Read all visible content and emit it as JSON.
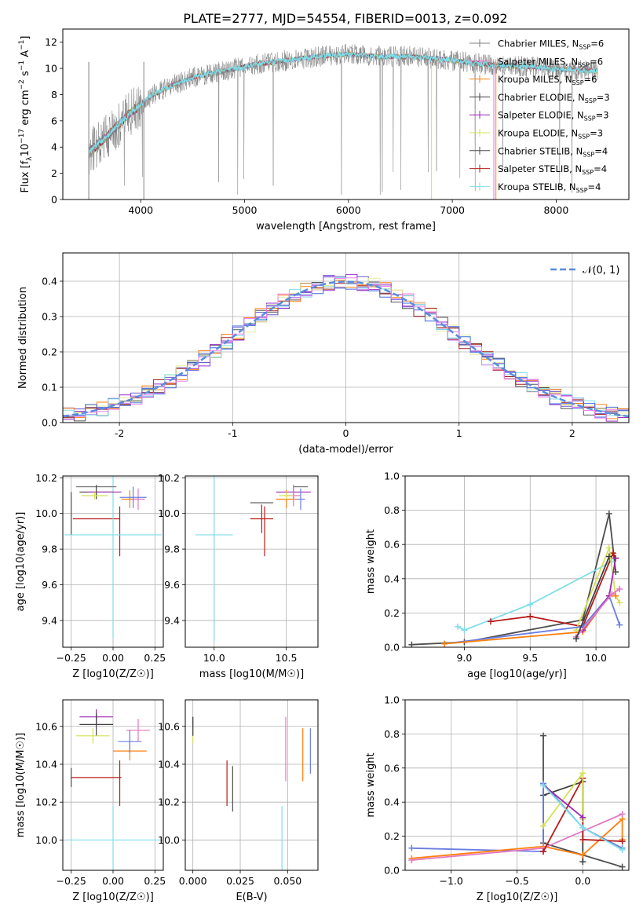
{
  "figure_title": "PLATE=2777, MJD=54554, FIBERID=0013, z=0.092",
  "colors": {
    "series": [
      "#808080",
      "#e377c2",
      "#ff7f0e",
      "#404040",
      "#9c27b0",
      "#d4e157",
      "#4d4d4d",
      "#b71c1c",
      "#80deea"
    ],
    "line_medians": [
      "#555555",
      "#6a5acd",
      "#ff7f0e",
      "#a02020",
      "#9932cc",
      "#e6ee9c",
      "#80deea",
      "#4169e1",
      "#ee82ee"
    ],
    "gauss": "#5b8ddb"
  },
  "legend_entries": [
    "Chabrier MILES, N",
    "Salpeter MILES, N",
    "Kroupa MILES, N",
    "Chabrier ELODIE, N",
    "Salpeter ELODIE, N",
    "Kroupa ELODIE, N",
    "Chabrier STELIB, N",
    "Salpeter STELIB, N",
    "Kroupa STELIB, N"
  ],
  "legend_subscript": "SSP",
  "legend_counts": [
    "=6",
    "=6",
    "=6",
    "=3",
    "=3",
    "=3",
    "=4",
    "=4",
    "=4"
  ],
  "hist_legend": "𝒩(0, 1)",
  "chart_data": [
    {
      "type": "line",
      "id": "spectrum",
      "title": "PLATE=2777, MJD=54554, FIBERID=0013, z=0.092",
      "xlabel": "wavelength [Angstrom, rest frame]",
      "ylabel": "Flux [f_λ 10^-17 erg cm^-2 s^-1 A^-1]",
      "xlim": [
        3250,
        8700
      ],
      "ylim": [
        0,
        13
      ],
      "xticks": [
        4000,
        5000,
        6000,
        7000,
        8000
      ],
      "yticks": [
        0,
        2,
        4,
        6,
        8,
        10,
        12
      ],
      "grid": false,
      "legend_position": "top-right",
      "continuum_x": [
        3500,
        3700,
        3900,
        4100,
        4300,
        4500,
        4800,
        5100,
        5400,
        5700,
        6000,
        6300,
        6600,
        6900,
        7200,
        7500,
        7800,
        8100,
        8400
      ],
      "continuum_y": [
        3.6,
        5.0,
        6.6,
        7.9,
        8.7,
        9.3,
        9.8,
        10.3,
        10.6,
        10.9,
        11.1,
        10.9,
        10.9,
        10.7,
        10.4,
        10.2,
        10.1,
        9.9,
        9.8
      ],
      "series_names": [
        "Chabrier MILES",
        "Salpeter MILES",
        "Kroupa MILES",
        "Chabrier ELODIE",
        "Salpeter ELODIE",
        "Kroupa ELODIE",
        "Chabrier STELIB",
        "Salpeter STELIB",
        "Kroupa STELIB"
      ]
    },
    {
      "type": "histogram",
      "id": "residuals",
      "xlabel": "(data-model)/error",
      "ylabel": "Normed distribution",
      "xlim": [
        -2.5,
        2.5
      ],
      "ylim": [
        0,
        0.48
      ],
      "xticks": [
        -2,
        -1,
        0,
        1,
        2
      ],
      "yticks": [
        0.0,
        0.1,
        0.2,
        0.3,
        0.4
      ],
      "grid": true,
      "bin_width": 0.1,
      "reference_curve": "normal(0,1)",
      "legend_position": "top-right"
    },
    {
      "type": "errorbar",
      "id": "age_vs_Z",
      "xlabel": "Z [log10(Z/Z☉)]",
      "ylabel": "age [log10(age/yr)]",
      "xlim": [
        -0.3,
        0.3
      ],
      "ylim": [
        9.25,
        10.21
      ],
      "xticks": [
        -0.25,
        0.0,
        0.25
      ],
      "xtick_labels": [
        "−0.25",
        "0.00",
        "0.25"
      ],
      "yticks": [
        9.4,
        9.6,
        9.8,
        10.0,
        10.2
      ],
      "grid": true,
      "points": [
        {
          "x": -0.25,
          "xerr": 0.0,
          "y": 10.0,
          "yerr": 0.12,
          "color": "#4d4d4d"
        },
        {
          "x": -0.1,
          "xerr": 0.14,
          "y": 9.97,
          "yerr": 0.0,
          "color": "#b71c1c"
        },
        {
          "x": 0.04,
          "xerr": 0.0,
          "y": 9.9,
          "yerr": 0.14,
          "color": "#b71c1c"
        },
        {
          "x": 0.0,
          "xerr": 0.29,
          "y": 9.88,
          "yerr": 0.58,
          "color": "#80deea"
        },
        {
          "x": -0.1,
          "xerr": 0.12,
          "y": 10.15,
          "yerr": 0.0,
          "color": "#808080"
        },
        {
          "x": -0.1,
          "xerr": 0.1,
          "y": 10.12,
          "yerr": 0.04,
          "color": "#404040"
        },
        {
          "x": -0.05,
          "xerr": 0.1,
          "y": 10.12,
          "yerr": 0.0,
          "color": "#9c27b0"
        },
        {
          "x": -0.11,
          "xerr": 0.08,
          "y": 10.1,
          "yerr": 0.02,
          "color": "#d4e157"
        },
        {
          "x": 0.1,
          "xerr": 0.05,
          "y": 10.08,
          "yerr": 0.05,
          "color": "#ff7f0e"
        },
        {
          "x": 0.15,
          "xerr": 0.04,
          "y": 10.08,
          "yerr": 0.06,
          "color": "#e377c2"
        },
        {
          "x": 0.12,
          "xerr": 0.08,
          "y": 10.09,
          "yerr": 0.06,
          "color": "#6a7de0"
        }
      ]
    },
    {
      "type": "errorbar",
      "id": "age_vs_mass",
      "xlabel": "mass [log10(M/M☉)]",
      "ylabel": "",
      "xlim": [
        9.8,
        10.72
      ],
      "ylim": [
        9.25,
        10.21
      ],
      "xticks": [
        10.0,
        10.5
      ],
      "yticks": [
        9.4,
        9.6,
        9.8,
        10.0,
        10.2
      ],
      "grid": true,
      "points": [
        {
          "x": 10.0,
          "xerr": 0.13,
          "y": 9.88,
          "yerr": 0.6,
          "color": "#80deea"
        },
        {
          "x": 10.33,
          "xerr": 0.08,
          "y": 9.97,
          "yerr": 0.08,
          "color": "#b71c1c"
        },
        {
          "x": 10.33,
          "xerr": 0.08,
          "y": 10.06,
          "yerr": 0.0,
          "color": "#4d4d4d"
        },
        {
          "x": 10.35,
          "xerr": 0.0,
          "y": 9.9,
          "yerr": 0.14,
          "color": "#b71c1c"
        },
        {
          "x": 10.55,
          "xerr": 0.12,
          "y": 10.12,
          "yerr": 0.04,
          "color": "#9c27b0"
        },
        {
          "x": 10.5,
          "xerr": 0.07,
          "y": 10.08,
          "yerr": 0.05,
          "color": "#ff7f0e"
        },
        {
          "x": 10.55,
          "xerr": 0.05,
          "y": 10.1,
          "yerr": 0.06,
          "color": "#e377c2"
        },
        {
          "x": 10.6,
          "xerr": 0.03,
          "y": 10.08,
          "yerr": 0.06,
          "color": "#6a7de0"
        },
        {
          "x": 10.5,
          "xerr": 0.05,
          "y": 10.1,
          "yerr": 0.02,
          "color": "#d4e157"
        },
        {
          "x": 10.6,
          "xerr": 0.05,
          "y": 10.15,
          "yerr": 0.0,
          "color": "#808080"
        }
      ]
    },
    {
      "type": "line",
      "id": "mass_weight_vs_age",
      "xlabel": "age [log10(age/yr)]",
      "ylabel": "mass weight",
      "xlim": [
        8.55,
        10.25
      ],
      "ylim": [
        0,
        1.0
      ],
      "xticks": [
        9.0,
        9.5,
        10.0
      ],
      "yticks": [
        0.0,
        0.2,
        0.4,
        0.6,
        0.8,
        1.0
      ],
      "grid": true,
      "series": [
        {
          "color": "#4d4d4d",
          "x": [
            8.6,
            9.0,
            9.9,
            10.1,
            10.15
          ],
          "y": [
            0.015,
            0.03,
            0.16,
            0.78,
            0.44
          ]
        },
        {
          "color": "#80deea",
          "x": [
            8.95,
            9.0,
            9.5,
            10.12
          ],
          "y": [
            0.12,
            0.1,
            0.25,
            0.5
          ]
        },
        {
          "color": "#b71c1c",
          "x": [
            9.2,
            9.5,
            9.9,
            10.13,
            10.15
          ],
          "y": [
            0.15,
            0.18,
            0.12,
            0.55,
            0.52
          ]
        },
        {
          "color": "#d4e157",
          "x": [
            9.85,
            10.1,
            10.15,
            10.18
          ],
          "y": [
            0.1,
            0.58,
            0.3,
            0.26
          ]
        },
        {
          "color": "#6a7de0",
          "x": [
            8.85,
            9.9,
            10.1,
            10.18
          ],
          "y": [
            0.02,
            0.12,
            0.3,
            0.13
          ]
        },
        {
          "color": "#ff7f0e",
          "x": [
            8.85,
            9.9,
            10.1,
            10.15
          ],
          "y": [
            0.02,
            0.09,
            0.3,
            0.3
          ]
        },
        {
          "color": "#9c27b0",
          "x": [
            9.9,
            10.1,
            10.15
          ],
          "y": [
            0.1,
            0.3,
            0.52
          ]
        },
        {
          "color": "#e377c2",
          "x": [
            9.85,
            10.12,
            10.18
          ],
          "y": [
            0.06,
            0.31,
            0.34
          ]
        },
        {
          "color": "#404040",
          "x": [
            9.85,
            10.1
          ],
          "y": [
            0.05,
            0.53
          ]
        }
      ]
    },
    {
      "type": "errorbar",
      "id": "mass_vs_Z",
      "xlabel": "Z [log10(Z/Z☉)]",
      "ylabel": "mass [log10(M/M☉)]",
      "xlim": [
        -0.3,
        0.3
      ],
      "ylim": [
        9.84,
        10.74
      ],
      "xticks": [
        -0.25,
        0.0,
        0.25
      ],
      "xtick_labels": [
        "−0.25",
        "0.00",
        "0.25"
      ],
      "yticks": [
        10.0,
        10.2,
        10.4,
        10.6
      ],
      "grid": true,
      "points": [
        {
          "x": -0.25,
          "xerr": 0.0,
          "y": 10.33,
          "yerr": 0.05,
          "color": "#4d4d4d"
        },
        {
          "x": -0.1,
          "xerr": 0.15,
          "y": 10.33,
          "yerr": 0.0,
          "color": "#b71c1c"
        },
        {
          "x": 0.04,
          "xerr": 0.0,
          "y": 10.3,
          "yerr": 0.12,
          "color": "#b71c1c"
        },
        {
          "x": 0.0,
          "xerr": 0.28,
          "y": 10.0,
          "yerr": 0.18,
          "color": "#80deea"
        },
        {
          "x": -0.1,
          "xerr": 0.1,
          "y": 10.65,
          "yerr": 0.04,
          "color": "#9c27b0"
        },
        {
          "x": -0.1,
          "xerr": 0.1,
          "y": 10.61,
          "yerr": 0.06,
          "color": "#404040"
        },
        {
          "x": -0.12,
          "xerr": 0.1,
          "y": 10.55,
          "yerr": 0.04,
          "color": "#d4e157"
        },
        {
          "x": 0.1,
          "xerr": 0.1,
          "y": 10.47,
          "yerr": 0.05,
          "color": "#ff7f0e"
        },
        {
          "x": 0.15,
          "xerr": 0.07,
          "y": 10.58,
          "yerr": 0.06,
          "color": "#e377c2"
        },
        {
          "x": 0.1,
          "xerr": 0.07,
          "y": 10.52,
          "yerr": 0.06,
          "color": "#6a7de0"
        }
      ]
    },
    {
      "type": "errorbar",
      "id": "mass_vs_EBV",
      "xlabel": "E(B-V)",
      "ylabel": "",
      "xlim": [
        -0.004,
        0.066
      ],
      "ylim": [
        9.84,
        10.74
      ],
      "xticks": [
        0.0,
        0.025,
        0.05
      ],
      "xtick_labels": [
        "0.000",
        "0.025",
        "0.050"
      ],
      "yticks": [
        10.0,
        10.2,
        10.4,
        10.6
      ],
      "grid": true,
      "points": [
        {
          "x": 0.0,
          "xerr": 0.0,
          "y": 10.6,
          "yerr": 0.05,
          "color": "#9c27b0"
        },
        {
          "x": 0.0,
          "xerr": 0.0,
          "y": 10.55,
          "yerr": 0.04,
          "color": "#d4e157"
        },
        {
          "x": 0.0,
          "xerr": 0.0,
          "y": 10.6,
          "yerr": 0.05,
          "color": "#404040"
        },
        {
          "x": 0.018,
          "xerr": 0.0,
          "y": 10.3,
          "yerr": 0.12,
          "color": "#b71c1c"
        },
        {
          "x": 0.021,
          "xerr": 0.0,
          "y": 10.27,
          "yerr": 0.12,
          "color": "#4d4d4d"
        },
        {
          "x": 0.047,
          "xerr": 0.0,
          "y": 10.0,
          "yerr": 0.18,
          "color": "#80deea"
        },
        {
          "x": 0.049,
          "xerr": 0.0,
          "y": 10.48,
          "yerr": 0.17,
          "color": "#e377c2"
        },
        {
          "x": 0.058,
          "xerr": 0.0,
          "y": 10.45,
          "yerr": 0.14,
          "color": "#ff7f0e"
        },
        {
          "x": 0.062,
          "xerr": 0.0,
          "y": 10.47,
          "yerr": 0.12,
          "color": "#6a7de0"
        }
      ]
    },
    {
      "type": "line",
      "id": "mass_weight_vs_Z",
      "xlabel": "Z [log10(Z/Z☉)]",
      "ylabel": "mass weight",
      "xlim": [
        -1.35,
        0.35
      ],
      "ylim": [
        0,
        1.0
      ],
      "xticks": [
        -1.0,
        -0.5,
        0.0
      ],
      "xtick_labels": [
        "−1.0",
        "−0.5",
        "0.0"
      ],
      "yticks": [
        0.0,
        0.2,
        0.4,
        0.6,
        0.8,
        1.0
      ],
      "grid": true,
      "series": [
        {
          "color": "#4d4d4d",
          "x": [
            -0.3,
            -0.3,
            0.0,
            0.3
          ],
          "y": [
            0.79,
            0.16,
            0.09,
            0.02
          ]
        },
        {
          "color": "#404040",
          "x": [
            -0.3,
            0.0,
            0.0
          ],
          "y": [
            0.44,
            0.52,
            0.05
          ]
        },
        {
          "color": "#6a7de0",
          "x": [
            -1.3,
            -0.3,
            -0.3,
            0.0,
            0.3
          ],
          "y": [
            0.13,
            0.11,
            0.51,
            0.25,
            0.13
          ]
        },
        {
          "color": "#ff7f0e",
          "x": [
            -1.3,
            -0.3,
            0.0,
            0.3,
            0.3
          ],
          "y": [
            0.07,
            0.14,
            0.09,
            0.3,
            0.18
          ]
        },
        {
          "color": "#e377c2",
          "x": [
            -1.3,
            -0.3,
            0.3
          ],
          "y": [
            0.06,
            0.13,
            0.33
          ]
        },
        {
          "color": "#b71c1c",
          "x": [
            -0.3,
            0.0,
            0.0,
            0.3
          ],
          "y": [
            0.11,
            0.54,
            0.18,
            0.17
          ]
        },
        {
          "color": "#d4e157",
          "x": [
            -0.3,
            0.0,
            0.0
          ],
          "y": [
            0.26,
            0.57,
            0.3
          ]
        },
        {
          "color": "#9c27b0",
          "x": [
            -0.3,
            0.0
          ],
          "y": [
            0.5,
            0.31
          ]
        },
        {
          "color": "#80deea",
          "x": [
            -0.3,
            0.0,
            0.3
          ],
          "y": [
            0.5,
            0.25,
            0.12
          ]
        }
      ]
    }
  ]
}
